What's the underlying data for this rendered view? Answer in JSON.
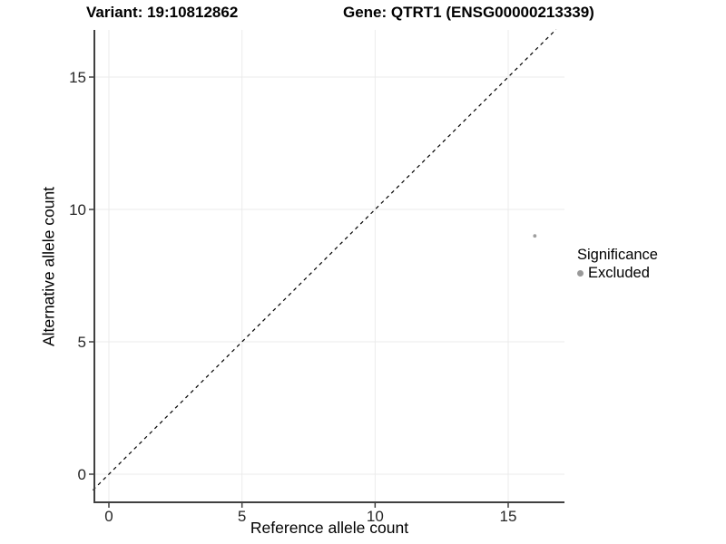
{
  "chart_data": {
    "type": "scatter",
    "titles": [
      "Variant: 19:10812862",
      "Gene: QTRT1 (ENSG00000213339)"
    ],
    "xlabel": "Reference allele count",
    "ylabel": "Alternative allele count",
    "xlim": [
      -0.6,
      17.1
    ],
    "ylim": [
      -1.1,
      16.8
    ],
    "x_ticks": [
      0,
      5,
      10,
      15
    ],
    "y_ticks": [
      0,
      5,
      10,
      15
    ],
    "grid": "major",
    "series": [
      {
        "name": "Excluded",
        "color": "#9e9e9e",
        "points": [
          {
            "x": 16,
            "y": 9
          }
        ]
      }
    ],
    "reference_line": {
      "kind": "identity y=x",
      "style": "dashed",
      "color": "#000000"
    },
    "legend": {
      "title": "Significance",
      "position": "right",
      "entries": [
        {
          "label": "Excluded",
          "marker": "circle",
          "color": "#999999"
        }
      ]
    },
    "style": {
      "point_color": "#9e9e9e",
      "grid_color": "#ebebeb",
      "axis_color": "#404040",
      "tick_label_color": "#262626",
      "background": "#ffffff"
    }
  }
}
